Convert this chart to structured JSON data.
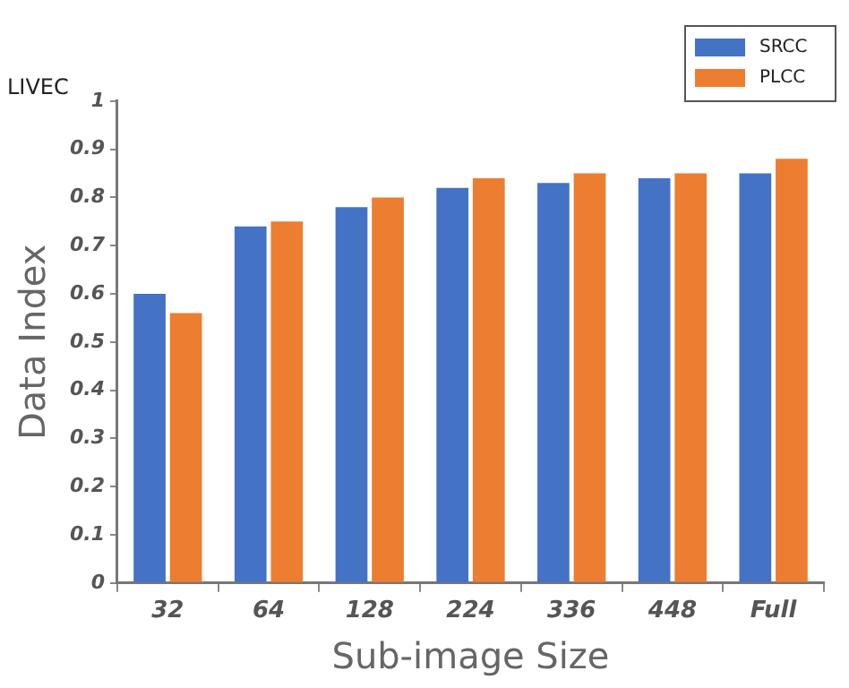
{
  "chart_data": {
    "type": "bar",
    "title": "LIVEC",
    "xlabel": "Sub-image Size",
    "ylabel": "Data Index",
    "categories": [
      "32",
      "64",
      "128",
      "224",
      "336",
      "448",
      "Full"
    ],
    "series": [
      {
        "name": "SRCC",
        "color": "#4472c4",
        "values": [
          0.6,
          0.74,
          0.78,
          0.82,
          0.83,
          0.84,
          0.85
        ]
      },
      {
        "name": "PLCC",
        "color": "#ed7d31",
        "values": [
          0.56,
          0.75,
          0.8,
          0.84,
          0.85,
          0.85,
          0.88
        ]
      }
    ],
    "ylim": [
      0,
      1
    ],
    "yticks": [
      0,
      0.1,
      0.2,
      0.3,
      0.4,
      0.5,
      0.6,
      0.7,
      0.8,
      0.9,
      1
    ],
    "grid": false,
    "legend": "top right"
  }
}
